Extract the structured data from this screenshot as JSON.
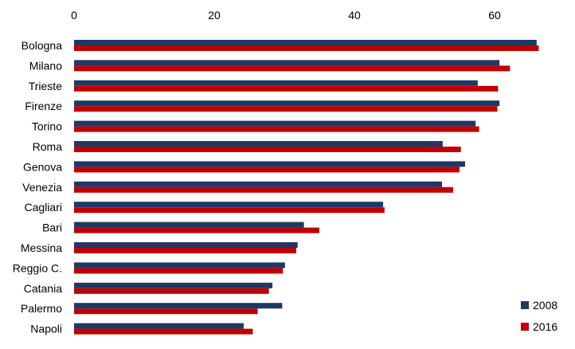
{
  "chart_data": {
    "type": "bar",
    "orientation": "horizontal",
    "title": "",
    "xlabel": "",
    "ylabel": "",
    "xlim": [
      0,
      70
    ],
    "xticks": [
      0,
      20,
      40,
      60
    ],
    "x_axis_position": "top",
    "grid": false,
    "legend_position": "bottom-right",
    "categories": [
      "Bologna",
      "Milano",
      "Trieste",
      "Firenze",
      "Torino",
      "Roma",
      "Genova",
      "Venezia",
      "Cagliari",
      "Bari",
      "Messina",
      "Reggio C.",
      "Catania",
      "Palermo",
      "Napoli"
    ],
    "series": [
      {
        "name": "2008",
        "color": "#1f3864",
        "values": [
          66.0,
          60.7,
          57.6,
          60.7,
          57.3,
          52.6,
          55.8,
          52.5,
          44.1,
          32.8,
          31.9,
          30.1,
          28.3,
          29.7,
          24.2
        ]
      },
      {
        "name": "2016",
        "color": "#c00000",
        "values": [
          66.3,
          62.2,
          60.5,
          60.4,
          57.8,
          55.2,
          55.0,
          54.1,
          44.3,
          35.0,
          31.7,
          29.8,
          27.8,
          26.2,
          25.5
        ]
      }
    ]
  }
}
